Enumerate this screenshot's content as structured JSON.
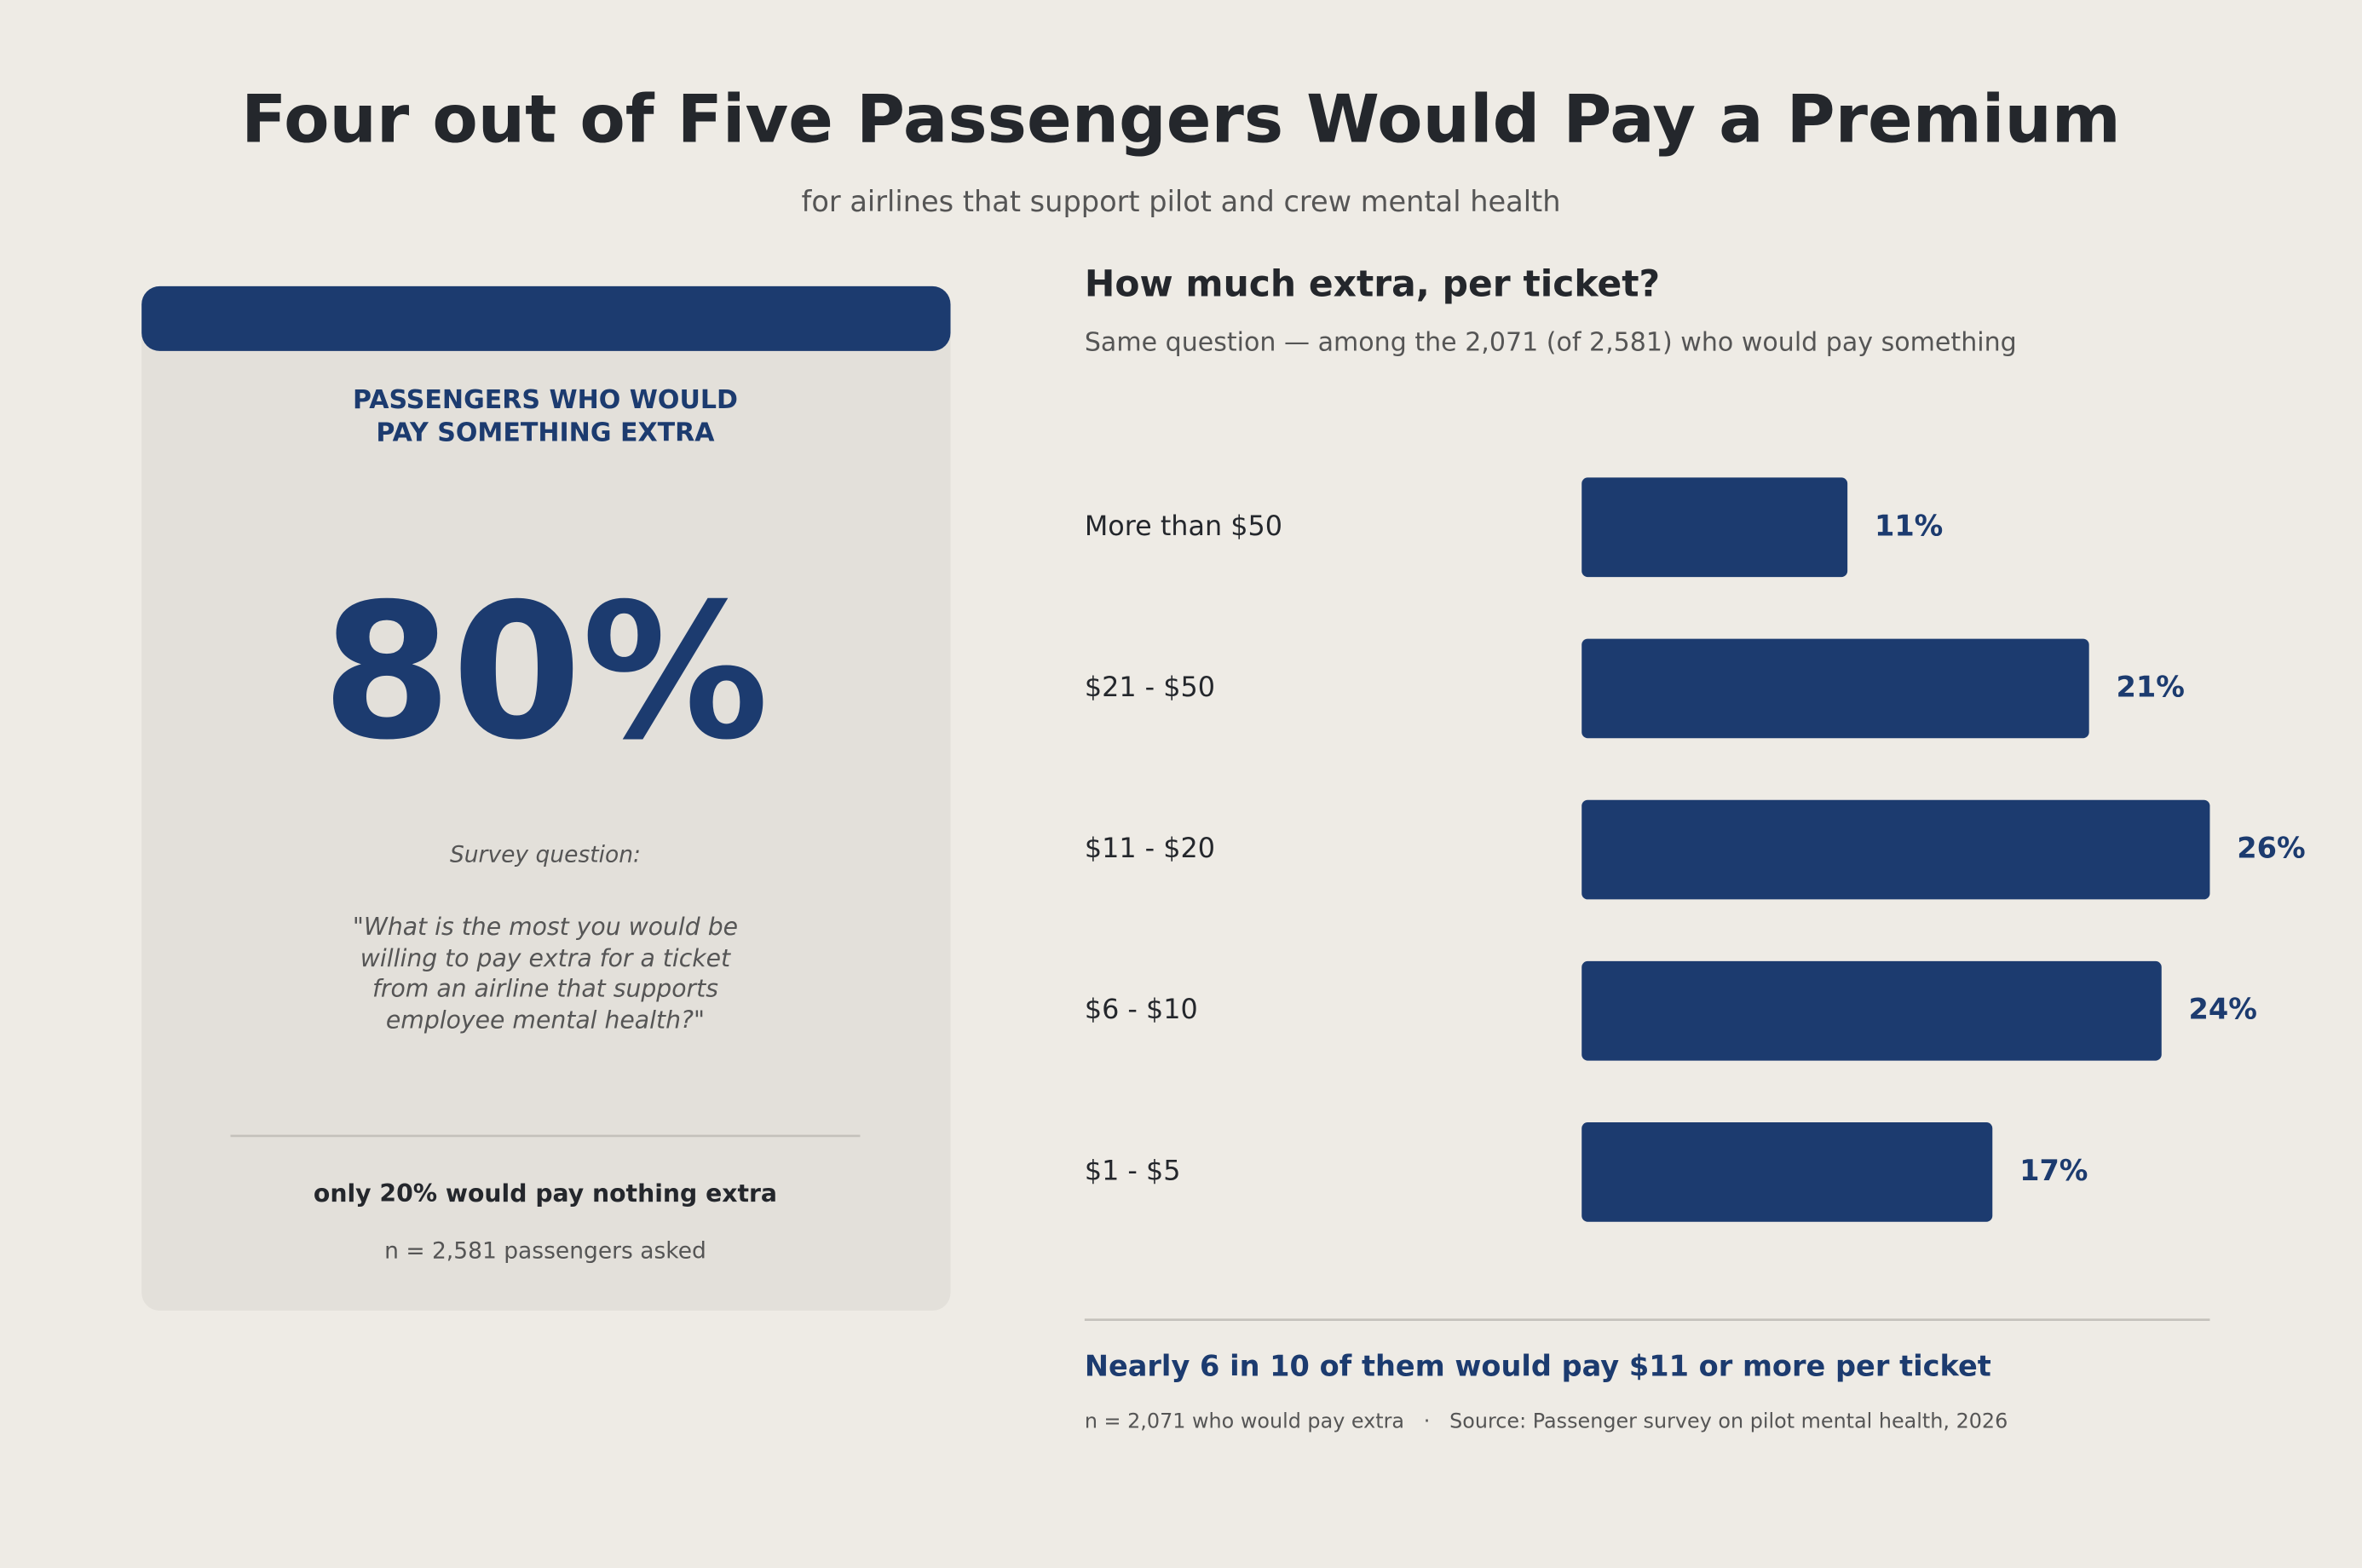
{
  "header": {
    "title": "Four out of Five Passengers Would Pay a Premium",
    "subtitle": "for airlines that support pilot and crew mental health"
  },
  "card": {
    "heading": [
      "PASSENGERS WHO WOULD",
      "PAY SOMETHING EXTRA"
    ],
    "stat": "80%",
    "question_label": "Survey question:",
    "question": [
      "\"What is the most you would be",
      "willing to pay extra for a ticket",
      "from an airline that supports",
      "employee mental health?\""
    ],
    "footnote": "only 20% would pay nothing extra",
    "sample": "n = 2,581 passengers asked"
  },
  "chart_data": {
    "type": "bar",
    "orientation": "horizontal",
    "title": "How much extra, per ticket?",
    "subtitle": "Same question — among the 2,071 (of 2,581) who would pay something",
    "categories": [
      "More than $50",
      "$21 - $50",
      "$11 - $20",
      "$6 - $10",
      "$1 - $5"
    ],
    "values": [
      11,
      21,
      26,
      24,
      17
    ],
    "value_labels": [
      "11%",
      "21%",
      "26%",
      "24%",
      "17%"
    ],
    "color": "#1c3b6f",
    "annotation": "Nearly 6 in 10 of them would pay $11 or more per ticket",
    "source": "n = 2,071 who would pay extra   ·   Source: Passenger survey on pilot mental health, 2026"
  }
}
